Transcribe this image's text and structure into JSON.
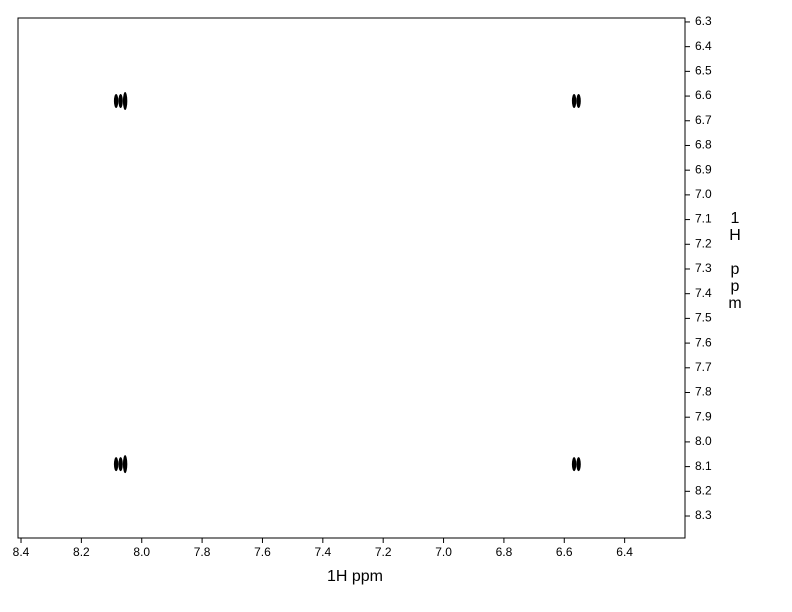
{
  "chart_data": {
    "type": "scatter",
    "xlabel": "1H ppm",
    "ylabel": "1H ppm",
    "x": [
      8.07,
      6.56,
      8.07,
      6.56
    ],
    "y": [
      6.62,
      6.62,
      8.09,
      8.09
    ],
    "color": "#000000",
    "xlim": [
      8.41,
      6.2
    ],
    "ylim": [
      6.284,
      8.389
    ],
    "xticks": [
      8.4,
      8.2,
      {
        "value": 8,
        "label": "8.0"
      },
      7.8,
      7.6,
      7.4,
      7.2,
      {
        "value": 7,
        "label": "7.0"
      },
      6.8,
      6.6,
      6.4
    ],
    "yticks": [
      6.3,
      6.4,
      6.5,
      6.6,
      6.7,
      6.8,
      6.9,
      {
        "value": 7,
        "label": "7.0"
      },
      7.1,
      7.2,
      7.3,
      7.4,
      7.5,
      7.6,
      7.7,
      7.8,
      7.9,
      {
        "value": 8,
        "label": "8.0"
      },
      8.1,
      8.2,
      8.3
    ]
  }
}
